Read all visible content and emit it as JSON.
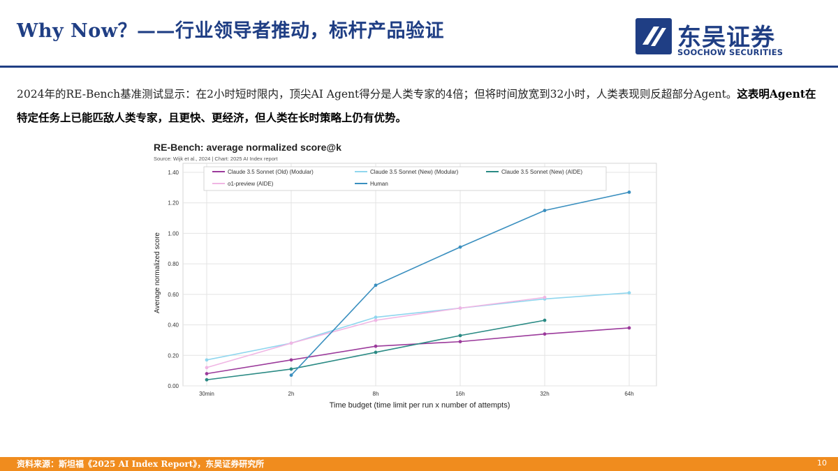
{
  "header": {
    "title": "Why Now？——行业领导者推动，标杆产品验证",
    "logo_cn": "东吴证券",
    "logo_en": "SOOCHOW SECURITIES"
  },
  "body": {
    "text_normal": "2024年的RE-Bench基准测试显示：在2小时短时限内，顶尖AI Agent得分是人类专家的4倍；但将时间放宽到32小时，人类表现则反超部分Agent。",
    "text_bold": "这表明Agent在特定任务上已能匹敌人类专家，且更快、更经济，但人类在长时策略上仍有优势。"
  },
  "footer": {
    "source": "资料来源：斯坦福《2025 AI Index Report》，东吴证券研究所",
    "page": "10"
  },
  "colors": {
    "brand": "#1f3e84",
    "footer": "#f08c1e"
  },
  "chart_data": {
    "type": "line",
    "title": "RE-Bench: average normalized score@k",
    "subtitle": "Source: Wijk et al., 2024 | Chart: 2025 AI Index report",
    "xlabel": "Time budget (time limit per run x number of attempts)",
    "ylabel": "Average normalized score",
    "categories": [
      "30min",
      "2h",
      "8h",
      "16h",
      "32h",
      "64h"
    ],
    "ylim": [
      0,
      1.4
    ],
    "yticks": [
      "0.00",
      "0.20",
      "0.40",
      "0.60",
      "0.80",
      "1.00",
      "1.20",
      "1.40"
    ],
    "grid": true,
    "legend_position": "top",
    "series": [
      {
        "name": "Claude 3.5 Sonnet (Old) (Modular)",
        "color": "#9b3a9b",
        "values": [
          0.08,
          0.17,
          0.26,
          0.29,
          0.34,
          0.38
        ]
      },
      {
        "name": "Claude 3.5 Sonnet (New) (Modular)",
        "color": "#8fd6ee",
        "values": [
          0.17,
          0.28,
          0.45,
          0.51,
          0.57,
          0.61
        ]
      },
      {
        "name": "Claude 3.5 Sonnet (New) (AIDE)",
        "color": "#2a8a84",
        "values": [
          0.04,
          0.11,
          0.22,
          0.33,
          0.43,
          null
        ]
      },
      {
        "name": "o1-preview (AIDE)",
        "color": "#f0b6e4",
        "values": [
          0.12,
          0.28,
          0.43,
          0.51,
          0.58,
          null
        ]
      },
      {
        "name": "Human",
        "color": "#3a8fbf",
        "values": [
          null,
          0.07,
          0.66,
          0.91,
          1.15,
          1.27
        ]
      }
    ]
  }
}
